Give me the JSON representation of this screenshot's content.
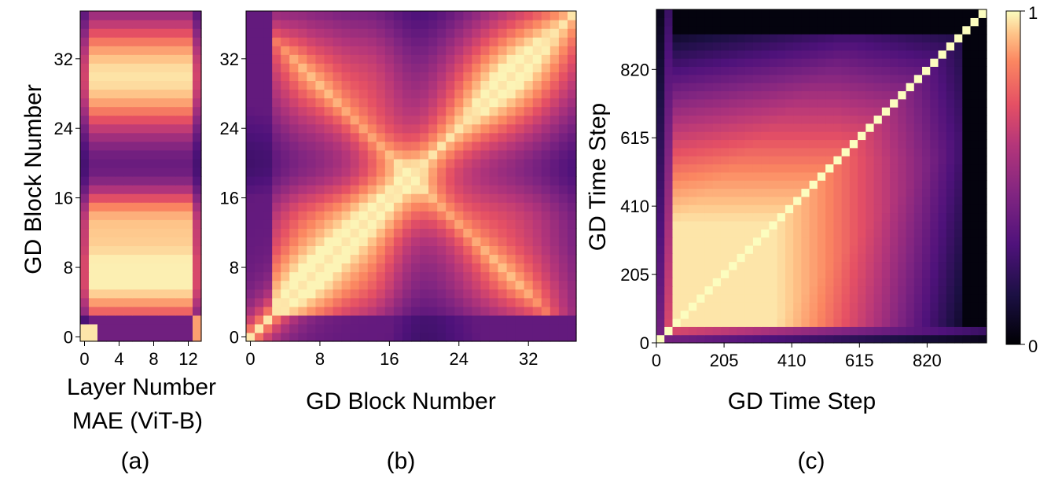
{
  "chart_data": [
    {
      "id": "a",
      "type": "heatmap",
      "panel_label": "(a)",
      "xlabel": "Layer Number",
      "xlabel_line2": "MAE (ViT-B)",
      "ylabel": "GD Block Number",
      "x_ticks": [
        "0",
        "4",
        "8",
        "12"
      ],
      "y_ticks": [
        "0",
        "8",
        "16",
        "24",
        "32"
      ],
      "x_tick_values": [
        0,
        4,
        8,
        12
      ],
      "y_tick_values": [
        0,
        8,
        16,
        24,
        32
      ],
      "xlim": [
        0,
        13
      ],
      "ylim": [
        0,
        37
      ],
      "colormap": "magma",
      "value_range": [
        0,
        1
      ],
      "description_values": "similarity between GD blocks (rows 0-37) and MAE layers (cols 0-13); high similarity for blocks 2-12 and 25-34, low near block 20"
    },
    {
      "id": "b",
      "type": "heatmap",
      "panel_label": "(b)",
      "xlabel": "GD Block Number",
      "ylabel": "",
      "x_ticks": [
        "0",
        "8",
        "16",
        "24",
        "32"
      ],
      "y_ticks": [
        "0",
        "8",
        "16",
        "24",
        "32"
      ],
      "x_tick_values": [
        0,
        8,
        16,
        24,
        32
      ],
      "y_tick_values": [
        0,
        8,
        16,
        24,
        32
      ],
      "xlim": [
        0,
        37
      ],
      "ylim": [
        0,
        37
      ],
      "colormap": "magma",
      "value_range": [
        0,
        1
      ]
    },
    {
      "id": "c",
      "type": "heatmap",
      "panel_label": "(c)",
      "xlabel": "GD Time Step",
      "ylabel": "GD Time Step",
      "x_ticks": [
        "0",
        "205",
        "410",
        "615",
        "820"
      ],
      "y_ticks": [
        "0",
        "205",
        "410",
        "615",
        "820"
      ],
      "x_tick_values": [
        0,
        205,
        410,
        615,
        820
      ],
      "y_tick_values": [
        0,
        205,
        410,
        615,
        820
      ],
      "xlim": [
        0,
        1000
      ],
      "ylim": [
        0,
        1000
      ],
      "colormap": "magma",
      "value_range": [
        0,
        1
      ],
      "colorbar": {
        "min_label": "0",
        "max_label": "1"
      }
    }
  ]
}
